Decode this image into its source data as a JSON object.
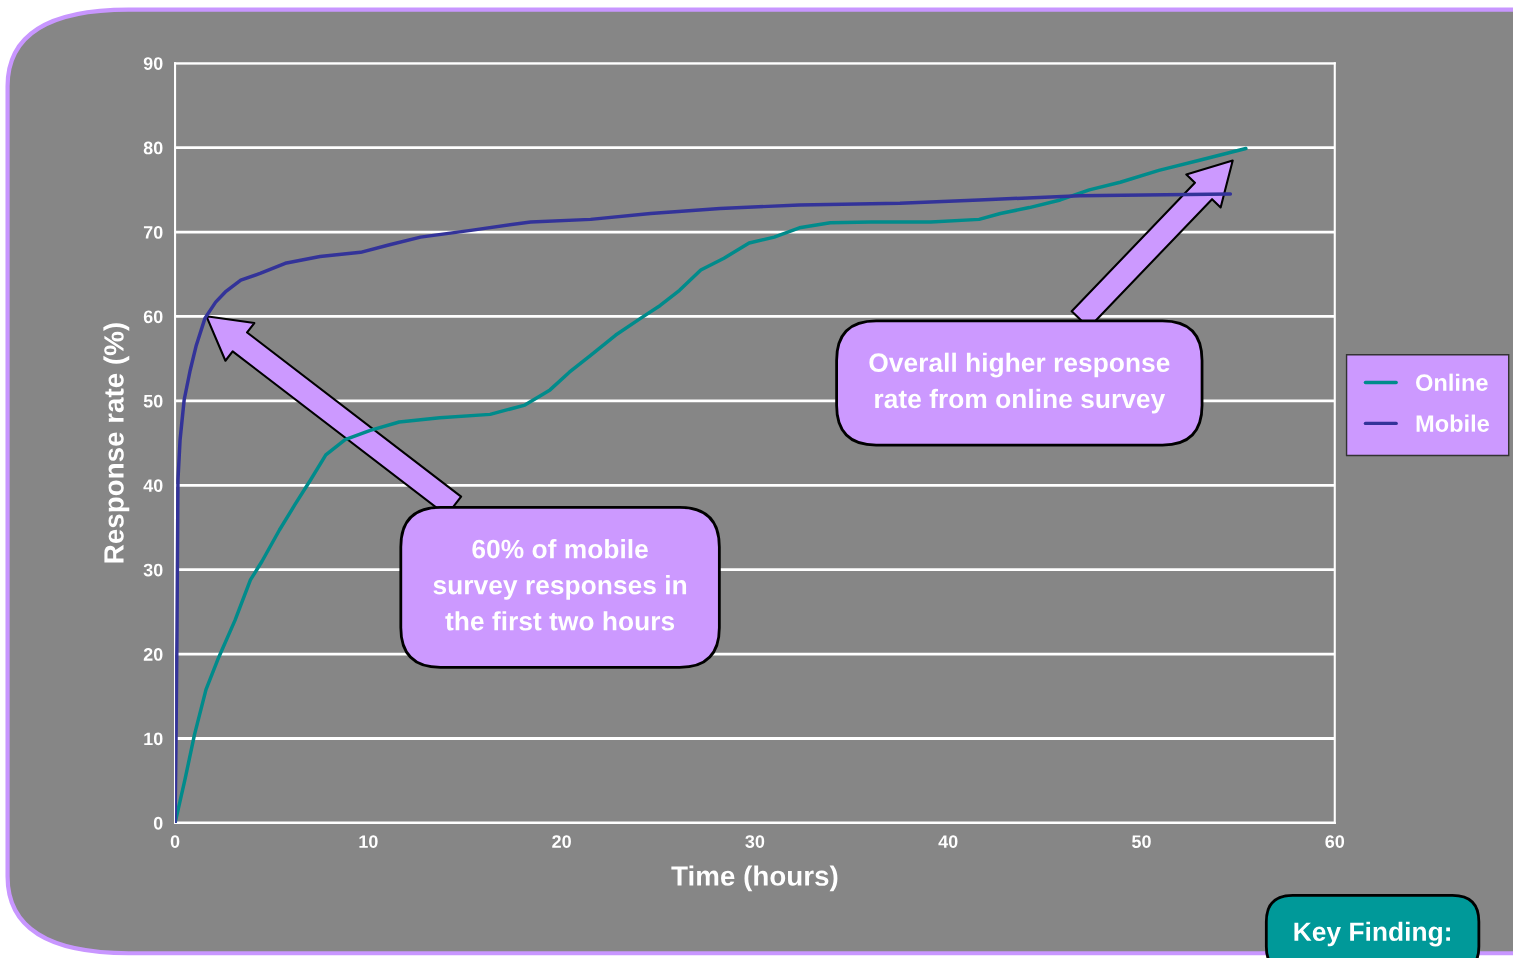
{
  "chart_data": {
    "type": "line",
    "xlabel": "Time (hours)",
    "ylabel": "Response rate (%)",
    "xlim": [
      0,
      60
    ],
    "xticks": [
      0,
      10,
      20,
      30,
      40,
      50,
      60
    ],
    "ylim": [
      0,
      90
    ],
    "yticks": [
      0,
      10,
      20,
      30,
      40,
      50,
      60,
      70,
      80,
      90
    ],
    "grid": "y",
    "legend": "right",
    "marker": "none",
    "line_style": "solid",
    "series": [
      {
        "name": "Online",
        "color": "#008b8b",
        "x": [
          0,
          0.5,
          1.0,
          1.6,
          2.2,
          3.1,
          3.9,
          4.5,
          5.4,
          6.2,
          7.0,
          7.8,
          8.8,
          10.1,
          11.6,
          13.7,
          16.3,
          18.1,
          19.4,
          20.4,
          21.5,
          22.8,
          24.1,
          25.1,
          26.1,
          27.2,
          28.4,
          29.7,
          31.0,
          32.3,
          33.9,
          36.0,
          39.1,
          41.6,
          42.7,
          44.2,
          45.8,
          47.3,
          48.9,
          50.9,
          53.0,
          55.4
        ],
        "values": [
          0,
          5,
          10.4,
          15.8,
          19.3,
          24,
          28.8,
          31,
          34.7,
          37.7,
          40.6,
          43.6,
          45.4,
          46.5,
          47.5,
          48,
          48.4,
          49.5,
          51.3,
          53.4,
          55.4,
          57.8,
          59.8,
          61.3,
          63.1,
          65.5,
          66.9,
          68.7,
          69.4,
          70.5,
          71.1,
          71.2,
          71.2,
          71.5,
          72.2,
          72.9,
          73.8,
          75.0,
          75.9,
          77.3,
          78.5,
          79.9
        ]
      },
      {
        "name": "Mobile",
        "color": "#333399",
        "x": [
          0,
          0.05,
          0.1,
          0.15,
          0.26,
          0.47,
          0.78,
          1.1,
          1.55,
          2.1,
          2.6,
          3.4,
          4.4,
          5.7,
          7.5,
          9.6,
          11.1,
          12.7,
          15.3,
          18.4,
          21.5,
          24.6,
          28.2,
          32.3,
          37.5,
          41.6,
          46.8,
          54.6
        ],
        "values": [
          0,
          9.8,
          22.9,
          40.6,
          45.4,
          50.1,
          53.6,
          56.6,
          59.8,
          61.7,
          62.9,
          64.3,
          65.1,
          66.3,
          67.1,
          67.6,
          68.5,
          69.4,
          70.2,
          71.2,
          71.5,
          72.2,
          72.8,
          73.2,
          73.4,
          73.8,
          74.3,
          74.5
        ]
      }
    ],
    "annotations": [
      "60% of mobile\nsurvey responses in\nthe first two hours",
      "Overall higher response\nrate from online survey",
      "Key Finding:"
    ]
  }
}
